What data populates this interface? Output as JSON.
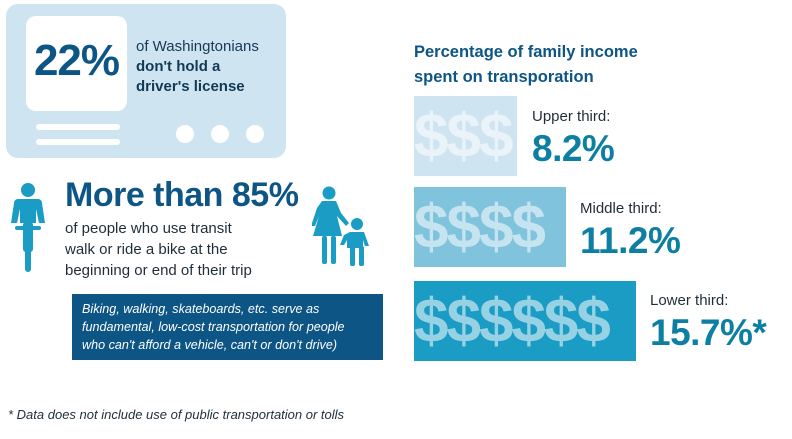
{
  "license_card": {
    "percent": "22%",
    "line1": "of Washingtonians",
    "line2": "don't hold a",
    "line3": "driver's license"
  },
  "transit": {
    "headline": "More than 85%",
    "line1": "of people who use transit",
    "line2": "walk or ride a bike at the",
    "line3": "beginning or end of their trip"
  },
  "note": {
    "line1": "Biking, walking, skateboards, etc. serve as",
    "line2": "fundamental, low-cost transportation for people",
    "line3": "who can't afford a vehicle, can't or don't drive)"
  },
  "footnote": "* Data does not include use of public transportation or tolls",
  "income": {
    "title_line1": "Percentage of family income",
    "title_line2": "spent on transporation",
    "rows": [
      {
        "label": "Upper third:",
        "value": "8.2%",
        "dollars": "$$$",
        "color": "#cfe4f1"
      },
      {
        "label": "Middle third:",
        "value": "11.2%",
        "dollars": "$$$$",
        "color": "#7fc3dc"
      },
      {
        "label": "Lower third:",
        "value": "15.7%*",
        "dollars": "$$$$$$",
        "color": "#1a9cc4"
      }
    ]
  },
  "colors": {
    "navy": "#0d5585",
    "teal": "#0d7fa3",
    "light_blue": "#cfe4f1",
    "icon_blue": "#1a9cc4"
  },
  "icons": [
    "person-with-bike-icon",
    "parent-and-child-icon"
  ]
}
